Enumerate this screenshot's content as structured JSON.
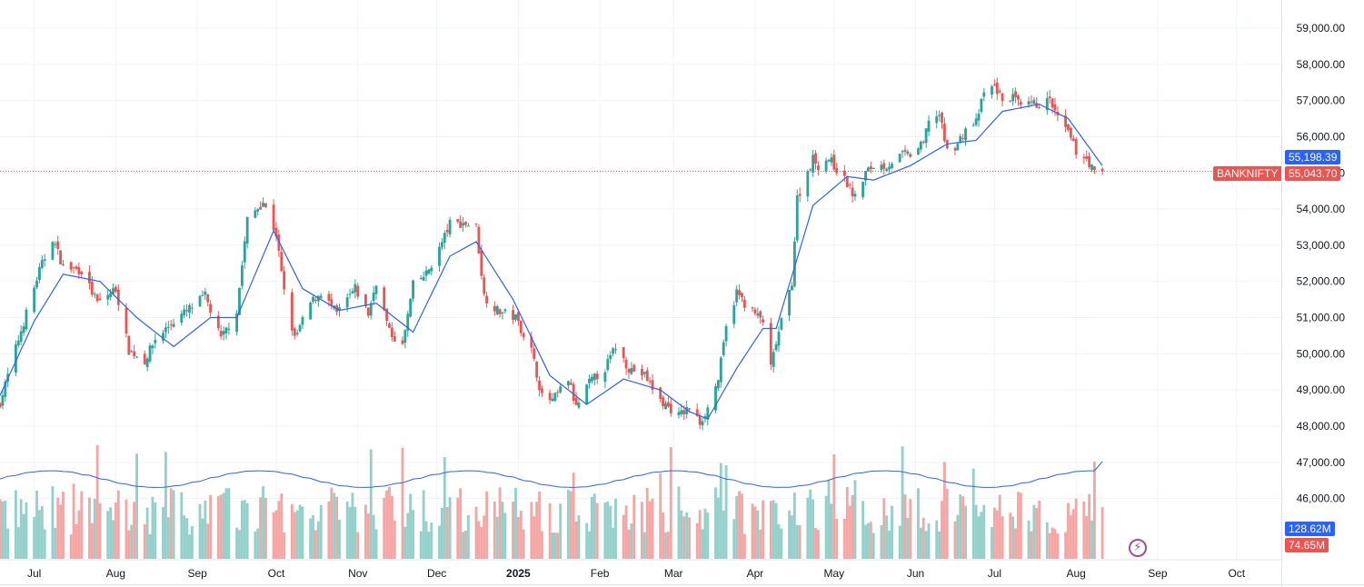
{
  "colors": {
    "up": "#26a69a",
    "down": "#ef5350",
    "ma": "#2962ff",
    "vol_up": "#93d0c9",
    "vol_down": "#f5a5a3",
    "grid": "#f0f3fa",
    "text": "#131722"
  },
  "badges": {
    "ma_value": "55,198.39",
    "symbol": "BANKNIFTY",
    "last_price": "55,043.70",
    "volume_ma": "128.62M",
    "volume": "74.65M"
  },
  "bolt_icon": "⚡",
  "chart_data": {
    "type": "candlestick",
    "symbol": "BANKNIFTY",
    "interval": "1D",
    "price_axis": {
      "range": [
        45200,
        59400
      ],
      "ticks": [
        46000,
        47000,
        48000,
        49000,
        50000,
        51000,
        52000,
        53000,
        54000,
        55000,
        56000,
        57000,
        58000,
        59000
      ],
      "tick_labels": [
        "46,000.00",
        "47,000.00",
        "48,000.00",
        "49,000.00",
        "50,000.00",
        "51,000.00",
        "52,000.00",
        "53,000.00",
        "54,000.00",
        "55,000.00",
        "56,000.00",
        "57,000.00",
        "58,000.00",
        "59,000.00"
      ]
    },
    "time_axis": {
      "range": [
        "2024-06-18",
        "2025-10-18"
      ],
      "ticks": [
        {
          "date": "2024-07-01",
          "label": "Jul",
          "bold": false
        },
        {
          "date": "2024-08-01",
          "label": "Aug",
          "bold": false
        },
        {
          "date": "2024-09-01",
          "label": "Sep",
          "bold": false
        },
        {
          "date": "2024-10-01",
          "label": "Oct",
          "bold": false
        },
        {
          "date": "2024-11-01",
          "label": "Nov",
          "bold": false
        },
        {
          "date": "2024-12-01",
          "label": "Dec",
          "bold": false
        },
        {
          "date": "2025-01-01",
          "label": "2025",
          "bold": true
        },
        {
          "date": "2025-02-01",
          "label": "Feb",
          "bold": false
        },
        {
          "date": "2025-03-01",
          "label": "Mar",
          "bold": false
        },
        {
          "date": "2025-04-01",
          "label": "Apr",
          "bold": false
        },
        {
          "date": "2025-05-01",
          "label": "May",
          "bold": false
        },
        {
          "date": "2025-06-01",
          "label": "Jun",
          "bold": false
        },
        {
          "date": "2025-07-01",
          "label": "Jul",
          "bold": false
        },
        {
          "date": "2025-08-01",
          "label": "Aug",
          "bold": false
        },
        {
          "date": "2025-09-01",
          "label": "Sep",
          "bold": false
        },
        {
          "date": "2025-10-01",
          "label": "Oct",
          "bold": false
        }
      ]
    },
    "close_anchors": [
      [
        "2024-06-18",
        48650
      ],
      [
        "2024-06-25",
        50400
      ],
      [
        "2024-07-03",
        52300
      ],
      [
        "2024-07-08",
        53200
      ],
      [
        "2024-07-12",
        52400
      ],
      [
        "2024-07-19",
        52300
      ],
      [
        "2024-07-25",
        51400
      ],
      [
        "2024-08-01",
        51800
      ],
      [
        "2024-08-06",
        50100
      ],
      [
        "2024-08-12",
        49800
      ],
      [
        "2024-08-16",
        50400
      ],
      [
        "2024-08-23",
        50900
      ],
      [
        "2024-08-30",
        51300
      ],
      [
        "2024-09-04",
        51600
      ],
      [
        "2024-09-10",
        50400
      ],
      [
        "2024-09-16",
        51200
      ],
      [
        "2024-09-20",
        53700
      ],
      [
        "2024-09-26",
        54200
      ],
      [
        "2024-10-01",
        53300
      ],
      [
        "2024-10-04",
        51700
      ],
      [
        "2024-10-08",
        50400
      ],
      [
        "2024-10-14",
        51400
      ],
      [
        "2024-10-18",
        51700
      ],
      [
        "2024-10-24",
        51100
      ],
      [
        "2024-10-31",
        51800
      ],
      [
        "2024-11-05",
        51100
      ],
      [
        "2024-11-08",
        52000
      ],
      [
        "2024-11-13",
        50600
      ],
      [
        "2024-11-18",
        50200
      ],
      [
        "2024-11-22",
        51900
      ],
      [
        "2024-11-27",
        52200
      ],
      [
        "2024-12-02",
        52900
      ],
      [
        "2024-12-06",
        53600
      ],
      [
        "2024-12-12",
        53600
      ],
      [
        "2024-12-16",
        53500
      ],
      [
        "2024-12-19",
        51600
      ],
      [
        "2024-12-24",
        51200
      ],
      [
        "2024-12-31",
        51000
      ],
      [
        "2025-01-06",
        50100
      ],
      [
        "2025-01-10",
        48800
      ],
      [
        "2025-01-14",
        48700
      ],
      [
        "2025-01-20",
        49300
      ],
      [
        "2025-01-23",
        48500
      ],
      [
        "2025-01-28",
        49200
      ],
      [
        "2025-02-03",
        49600
      ],
      [
        "2025-02-07",
        50200
      ],
      [
        "2025-02-12",
        49600
      ],
      [
        "2025-02-18",
        49400
      ],
      [
        "2025-02-24",
        48700
      ],
      [
        "2025-03-03",
        48300
      ],
      [
        "2025-03-07",
        48500
      ],
      [
        "2025-03-11",
        48100
      ],
      [
        "2025-03-14",
        48500
      ],
      [
        "2025-03-18",
        49300
      ],
      [
        "2025-03-21",
        50700
      ],
      [
        "2025-03-25",
        51700
      ],
      [
        "2025-03-28",
        51400
      ],
      [
        "2025-04-01",
        51100
      ],
      [
        "2025-04-04",
        50900
      ],
      [
        "2025-04-07",
        49600
      ],
      [
        "2025-04-09",
        50300
      ],
      [
        "2025-04-15",
        52000
      ],
      [
        "2025-04-17",
        54300
      ],
      [
        "2025-04-23",
        55400
      ],
      [
        "2025-04-25",
        55200
      ],
      [
        "2025-04-29",
        55400
      ],
      [
        "2025-05-02",
        55100
      ],
      [
        "2025-05-06",
        54700
      ],
      [
        "2025-05-09",
        54300
      ],
      [
        "2025-05-13",
        55000
      ],
      [
        "2025-05-16",
        55200
      ],
      [
        "2025-05-21",
        55200
      ],
      [
        "2025-05-27",
        55500
      ],
      [
        "2025-05-30",
        55500
      ],
      [
        "2025-06-04",
        55800
      ],
      [
        "2025-06-06",
        56500
      ],
      [
        "2025-06-10",
        56600
      ],
      [
        "2025-06-13",
        55600
      ],
      [
        "2025-06-17",
        55800
      ],
      [
        "2025-06-20",
        56200
      ],
      [
        "2025-06-24",
        56400
      ],
      [
        "2025-06-27",
        57200
      ],
      [
        "2025-07-01",
        57400
      ],
      [
        "2025-07-04",
        57000
      ],
      [
        "2025-07-08",
        57100
      ],
      [
        "2025-07-11",
        56800
      ],
      [
        "2025-07-15",
        56900
      ],
      [
        "2025-07-18",
        56900
      ],
      [
        "2025-07-22",
        57000
      ],
      [
        "2025-07-25",
        56500
      ],
      [
        "2025-07-29",
        56100
      ],
      [
        "2025-08-01",
        55600
      ],
      [
        "2025-08-05",
        55400
      ],
      [
        "2025-08-08",
        55000
      ],
      [
        "2025-08-11",
        55043.7
      ]
    ],
    "moving_average": {
      "anchors": [
        [
          "2024-06-18",
          48850
        ],
        [
          "2024-07-01",
          50900
        ],
        [
          "2024-07-12",
          52200
        ],
        [
          "2024-07-26",
          52000
        ],
        [
          "2024-08-09",
          51000
        ],
        [
          "2024-08-23",
          50200
        ],
        [
          "2024-09-06",
          51000
        ],
        [
          "2024-09-16",
          51000
        ],
        [
          "2024-09-30",
          53400
        ],
        [
          "2024-10-11",
          51800
        ],
        [
          "2024-10-25",
          51200
        ],
        [
          "2024-11-08",
          51400
        ],
        [
          "2024-11-22",
          50600
        ],
        [
          "2024-12-06",
          52700
        ],
        [
          "2024-12-16",
          53100
        ],
        [
          "2024-12-30",
          51500
        ],
        [
          "2025-01-13",
          49400
        ],
        [
          "2025-01-27",
          48600
        ],
        [
          "2025-02-10",
          49300
        ],
        [
          "2025-02-24",
          49000
        ],
        [
          "2025-03-07",
          48400
        ],
        [
          "2025-03-14",
          48200
        ],
        [
          "2025-03-25",
          49600
        ],
        [
          "2025-04-04",
          50700
        ],
        [
          "2025-04-09",
          50700
        ],
        [
          "2025-04-23",
          54100
        ],
        [
          "2025-05-06",
          54900
        ],
        [
          "2025-05-16",
          54800
        ],
        [
          "2025-05-30",
          55200
        ],
        [
          "2025-06-13",
          55800
        ],
        [
          "2025-06-24",
          55900
        ],
        [
          "2025-07-04",
          56700
        ],
        [
          "2025-07-18",
          56900
        ],
        [
          "2025-07-29",
          56500
        ],
        [
          "2025-08-11",
          55198.39
        ]
      ],
      "last": 55198.39
    },
    "volume": {
      "axis_max": 190000000,
      "ma_level": 115000000,
      "last_volume": 74650000,
      "last_volume_ma": 128620000
    },
    "last_price": 55043.7
  }
}
